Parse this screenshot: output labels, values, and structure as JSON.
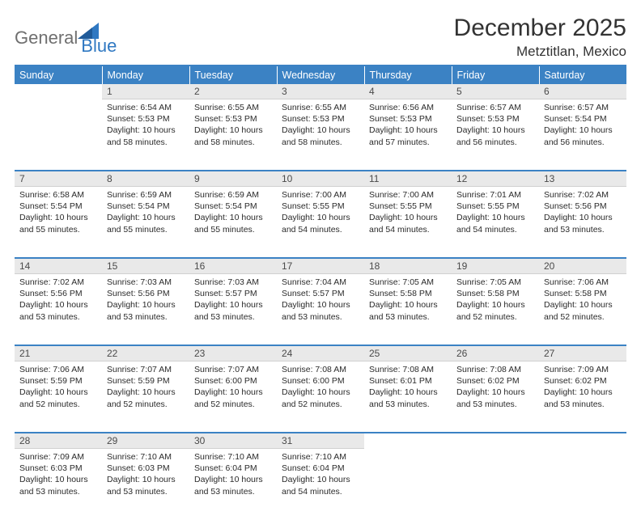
{
  "brand": {
    "part1": "General",
    "part2": "Blue"
  },
  "title": "December 2025",
  "location": "Metztitlan, Mexico",
  "colors": {
    "accent": "#3b82c4",
    "header_bg": "#3b82c4",
    "header_fg": "#ffffff",
    "daynum_bg": "#e9e9e9",
    "text": "#2b2b2b",
    "logo_gray": "#6f6f6f",
    "logo_blue": "#2f78c2"
  },
  "weekdays": [
    "Sunday",
    "Monday",
    "Tuesday",
    "Wednesday",
    "Thursday",
    "Friday",
    "Saturday"
  ],
  "weeks": [
    [
      {
        "day": "",
        "sunrise": "",
        "sunset": "",
        "daylight": ""
      },
      {
        "day": "1",
        "sunrise": "Sunrise: 6:54 AM",
        "sunset": "Sunset: 5:53 PM",
        "daylight": "Daylight: 10 hours and 58 minutes."
      },
      {
        "day": "2",
        "sunrise": "Sunrise: 6:55 AM",
        "sunset": "Sunset: 5:53 PM",
        "daylight": "Daylight: 10 hours and 58 minutes."
      },
      {
        "day": "3",
        "sunrise": "Sunrise: 6:55 AM",
        "sunset": "Sunset: 5:53 PM",
        "daylight": "Daylight: 10 hours and 58 minutes."
      },
      {
        "day": "4",
        "sunrise": "Sunrise: 6:56 AM",
        "sunset": "Sunset: 5:53 PM",
        "daylight": "Daylight: 10 hours and 57 minutes."
      },
      {
        "day": "5",
        "sunrise": "Sunrise: 6:57 AM",
        "sunset": "Sunset: 5:53 PM",
        "daylight": "Daylight: 10 hours and 56 minutes."
      },
      {
        "day": "6",
        "sunrise": "Sunrise: 6:57 AM",
        "sunset": "Sunset: 5:54 PM",
        "daylight": "Daylight: 10 hours and 56 minutes."
      }
    ],
    [
      {
        "day": "7",
        "sunrise": "Sunrise: 6:58 AM",
        "sunset": "Sunset: 5:54 PM",
        "daylight": "Daylight: 10 hours and 55 minutes."
      },
      {
        "day": "8",
        "sunrise": "Sunrise: 6:59 AM",
        "sunset": "Sunset: 5:54 PM",
        "daylight": "Daylight: 10 hours and 55 minutes."
      },
      {
        "day": "9",
        "sunrise": "Sunrise: 6:59 AM",
        "sunset": "Sunset: 5:54 PM",
        "daylight": "Daylight: 10 hours and 55 minutes."
      },
      {
        "day": "10",
        "sunrise": "Sunrise: 7:00 AM",
        "sunset": "Sunset: 5:55 PM",
        "daylight": "Daylight: 10 hours and 54 minutes."
      },
      {
        "day": "11",
        "sunrise": "Sunrise: 7:00 AM",
        "sunset": "Sunset: 5:55 PM",
        "daylight": "Daylight: 10 hours and 54 minutes."
      },
      {
        "day": "12",
        "sunrise": "Sunrise: 7:01 AM",
        "sunset": "Sunset: 5:55 PM",
        "daylight": "Daylight: 10 hours and 54 minutes."
      },
      {
        "day": "13",
        "sunrise": "Sunrise: 7:02 AM",
        "sunset": "Sunset: 5:56 PM",
        "daylight": "Daylight: 10 hours and 53 minutes."
      }
    ],
    [
      {
        "day": "14",
        "sunrise": "Sunrise: 7:02 AM",
        "sunset": "Sunset: 5:56 PM",
        "daylight": "Daylight: 10 hours and 53 minutes."
      },
      {
        "day": "15",
        "sunrise": "Sunrise: 7:03 AM",
        "sunset": "Sunset: 5:56 PM",
        "daylight": "Daylight: 10 hours and 53 minutes."
      },
      {
        "day": "16",
        "sunrise": "Sunrise: 7:03 AM",
        "sunset": "Sunset: 5:57 PM",
        "daylight": "Daylight: 10 hours and 53 minutes."
      },
      {
        "day": "17",
        "sunrise": "Sunrise: 7:04 AM",
        "sunset": "Sunset: 5:57 PM",
        "daylight": "Daylight: 10 hours and 53 minutes."
      },
      {
        "day": "18",
        "sunrise": "Sunrise: 7:05 AM",
        "sunset": "Sunset: 5:58 PM",
        "daylight": "Daylight: 10 hours and 53 minutes."
      },
      {
        "day": "19",
        "sunrise": "Sunrise: 7:05 AM",
        "sunset": "Sunset: 5:58 PM",
        "daylight": "Daylight: 10 hours and 52 minutes."
      },
      {
        "day": "20",
        "sunrise": "Sunrise: 7:06 AM",
        "sunset": "Sunset: 5:58 PM",
        "daylight": "Daylight: 10 hours and 52 minutes."
      }
    ],
    [
      {
        "day": "21",
        "sunrise": "Sunrise: 7:06 AM",
        "sunset": "Sunset: 5:59 PM",
        "daylight": "Daylight: 10 hours and 52 minutes."
      },
      {
        "day": "22",
        "sunrise": "Sunrise: 7:07 AM",
        "sunset": "Sunset: 5:59 PM",
        "daylight": "Daylight: 10 hours and 52 minutes."
      },
      {
        "day": "23",
        "sunrise": "Sunrise: 7:07 AM",
        "sunset": "Sunset: 6:00 PM",
        "daylight": "Daylight: 10 hours and 52 minutes."
      },
      {
        "day": "24",
        "sunrise": "Sunrise: 7:08 AM",
        "sunset": "Sunset: 6:00 PM",
        "daylight": "Daylight: 10 hours and 52 minutes."
      },
      {
        "day": "25",
        "sunrise": "Sunrise: 7:08 AM",
        "sunset": "Sunset: 6:01 PM",
        "daylight": "Daylight: 10 hours and 53 minutes."
      },
      {
        "day": "26",
        "sunrise": "Sunrise: 7:08 AM",
        "sunset": "Sunset: 6:02 PM",
        "daylight": "Daylight: 10 hours and 53 minutes."
      },
      {
        "day": "27",
        "sunrise": "Sunrise: 7:09 AM",
        "sunset": "Sunset: 6:02 PM",
        "daylight": "Daylight: 10 hours and 53 minutes."
      }
    ],
    [
      {
        "day": "28",
        "sunrise": "Sunrise: 7:09 AM",
        "sunset": "Sunset: 6:03 PM",
        "daylight": "Daylight: 10 hours and 53 minutes."
      },
      {
        "day": "29",
        "sunrise": "Sunrise: 7:10 AM",
        "sunset": "Sunset: 6:03 PM",
        "daylight": "Daylight: 10 hours and 53 minutes."
      },
      {
        "day": "30",
        "sunrise": "Sunrise: 7:10 AM",
        "sunset": "Sunset: 6:04 PM",
        "daylight": "Daylight: 10 hours and 53 minutes."
      },
      {
        "day": "31",
        "sunrise": "Sunrise: 7:10 AM",
        "sunset": "Sunset: 6:04 PM",
        "daylight": "Daylight: 10 hours and 54 minutes."
      },
      {
        "day": "",
        "sunrise": "",
        "sunset": "",
        "daylight": ""
      },
      {
        "day": "",
        "sunrise": "",
        "sunset": "",
        "daylight": ""
      },
      {
        "day": "",
        "sunrise": "",
        "sunset": "",
        "daylight": ""
      }
    ]
  ]
}
